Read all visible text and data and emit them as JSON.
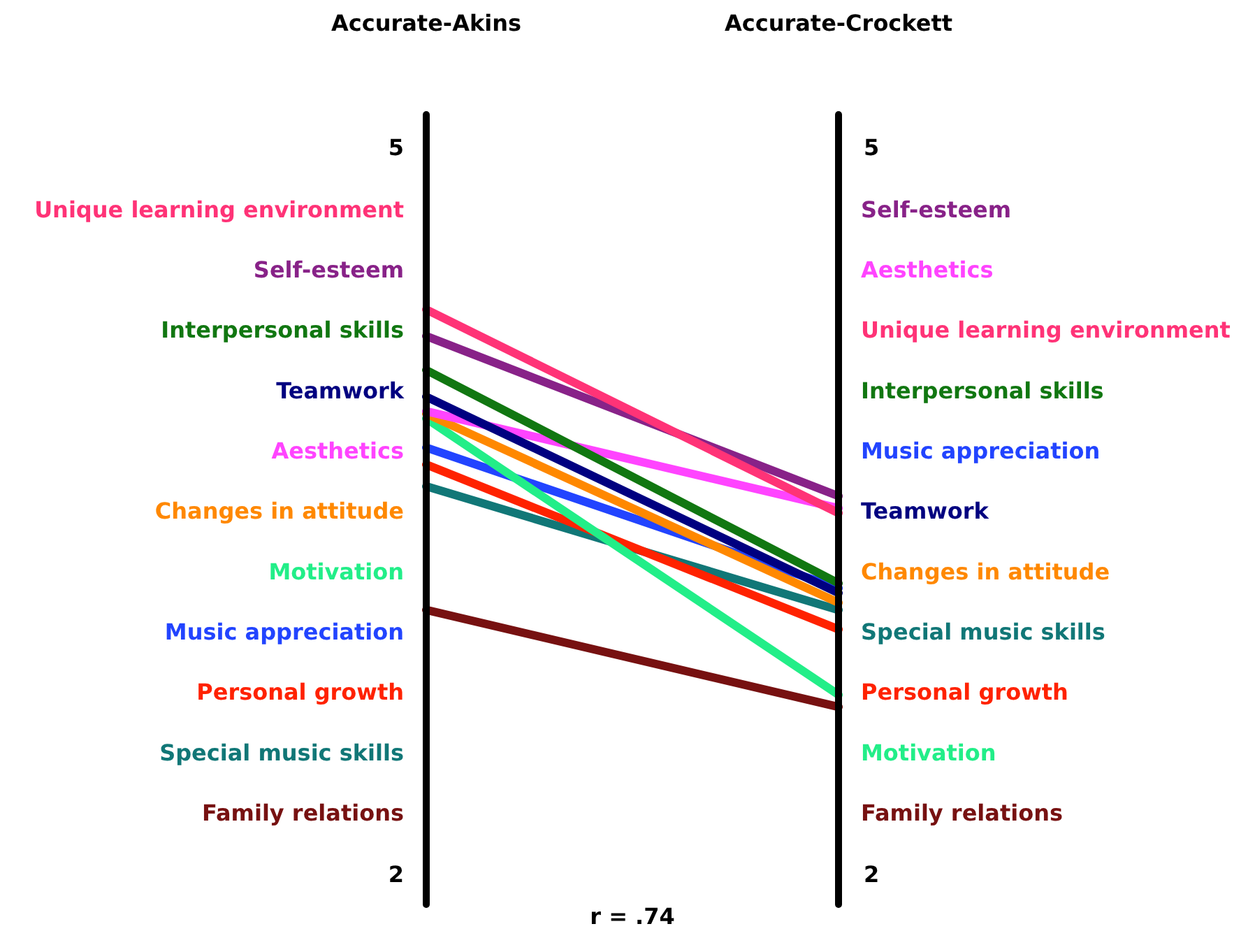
{
  "chart_data": {
    "type": "line",
    "categories": [
      "Accurate-Akins",
      "Accurate-Crockett"
    ],
    "ylim": [
      2,
      5
    ],
    "yticks": [
      2,
      5
    ],
    "y2lim": [
      2,
      5
    ],
    "y2ticks": [
      2,
      5
    ],
    "series": [
      {
        "name": "Unique learning environment",
        "color": "#ff3377",
        "values": [
          4.34,
          3.5
        ]
      },
      {
        "name": "Self-esteem",
        "color": "#882288",
        "values": [
          4.23,
          3.57
        ]
      },
      {
        "name": "Interpersonal skills",
        "color": "#117711",
        "values": [
          4.09,
          3.21
        ]
      },
      {
        "name": "Teamwork",
        "color": "#000080",
        "values": [
          3.98,
          3.17
        ]
      },
      {
        "name": "Aesthetics",
        "color": "#ff44ff",
        "values": [
          3.92,
          3.52
        ]
      },
      {
        "name": "Changes in attitude",
        "color": "#ff8800",
        "values": [
          3.91,
          3.13
        ]
      },
      {
        "name": "Motivation",
        "color": "#22ee88",
        "values": [
          3.89,
          2.75
        ]
      },
      {
        "name": "Music appreciation",
        "color": "#2244ff",
        "values": [
          3.77,
          3.19
        ]
      },
      {
        "name": "Personal growth",
        "color": "#ff2200",
        "values": [
          3.7,
          3.02
        ]
      },
      {
        "name": "Special music skills",
        "color": "#117777",
        "values": [
          3.61,
          3.1
        ]
      },
      {
        "name": "Family relations",
        "color": "#771111",
        "values": [
          3.1,
          2.7
        ]
      }
    ],
    "annotations": [
      "r = .74"
    ]
  }
}
